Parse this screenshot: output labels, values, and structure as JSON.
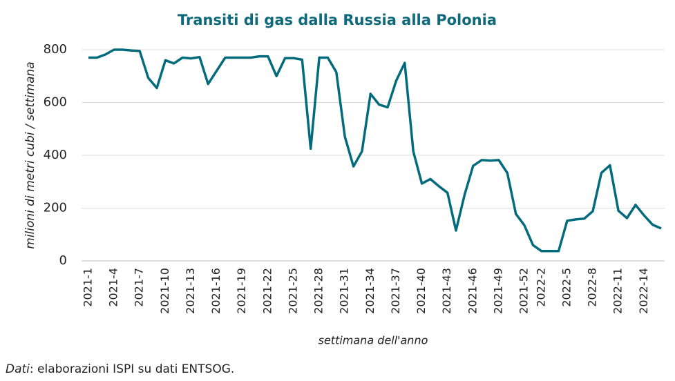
{
  "chart_data": {
    "type": "line",
    "title": "Transiti di gas dalla Russia alla Polonia",
    "y_label": "milioni di metri cubi / settimana",
    "x_label": "settimana dell'anno",
    "source": {
      "label": "Dati",
      "text": ": elaborazioni ISPI su dati ENTSOG."
    },
    "categories": [
      "2021-1",
      null,
      null,
      "2021-4",
      null,
      null,
      "2021-7",
      null,
      null,
      "2021-10",
      null,
      null,
      "2021-13",
      null,
      null,
      "2021-16",
      null,
      null,
      "2021-19",
      null,
      null,
      "2021-22",
      null,
      null,
      "2021-25",
      null,
      null,
      "2021-28",
      null,
      null,
      "2021-31",
      null,
      null,
      "2021-34",
      null,
      null,
      "2021-37",
      null,
      null,
      "2021-40",
      null,
      null,
      "2021-43",
      null,
      null,
      "2021-46",
      null,
      null,
      "2021-49",
      null,
      null,
      "2021-52",
      null,
      "2022-2",
      null,
      null,
      "2022-5",
      null,
      null,
      "2022-8",
      null,
      null,
      "2022-11",
      null,
      null,
      "2022-14",
      null,
      null
    ],
    "series": [
      {
        "name": "Transiti",
        "color": "#036b7c",
        "values": [
          770,
          770,
          782,
          800,
          800,
          797,
          795,
          693,
          655,
          760,
          748,
          770,
          767,
          772,
          670,
          720,
          770,
          770,
          770,
          770,
          775,
          775,
          700,
          768,
          768,
          762,
          425,
          770,
          770,
          715,
          470,
          358,
          415,
          633,
          592,
          582,
          682,
          750,
          415,
          293,
          310,
          283,
          258,
          115,
          250,
          360,
          382,
          380,
          382,
          333,
          178,
          135,
          60,
          37,
          37,
          37,
          152,
          157,
          160,
          188,
          333,
          362,
          190,
          162,
          212,
          172,
          137,
          123
        ]
      }
    ],
    "ylim": [
      0,
      800
    ],
    "yticks": [
      0,
      200,
      400,
      600,
      800
    ],
    "grid": true
  }
}
